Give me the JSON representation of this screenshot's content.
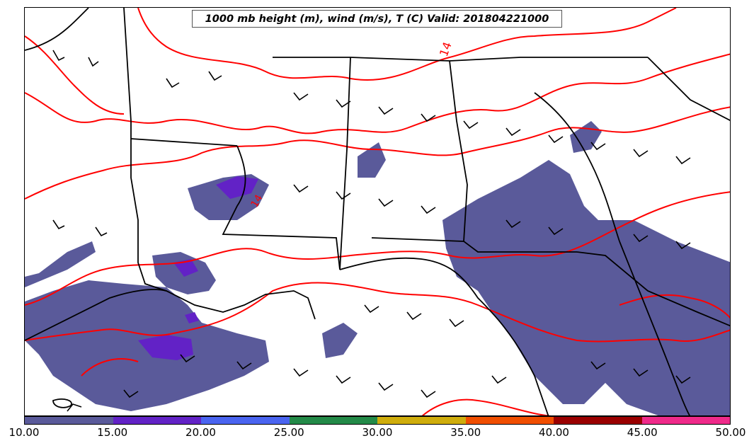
{
  "title": "1000 mb height (m), wind (m/s), T (C) Valid: 201804221000",
  "contour_labels": [
    "14",
    "14"
  ],
  "colorbar": {
    "colors": [
      "#5a5a9a",
      "#6222c6",
      "#4a64f0",
      "#238a48",
      "#cfad0c",
      "#f04e00",
      "#9a0000",
      "#ef2a8a"
    ],
    "ticks": [
      "10.00",
      "15.00",
      "20.00",
      "25.00",
      "30.00",
      "35.00",
      "40.00",
      "45.00",
      "50.00"
    ]
  },
  "colors": {
    "precip_fill": "#5a5a9a",
    "heavy_fill": "#6222c6",
    "temperature_contour": "#ff0000",
    "boundaries": "#000000"
  }
}
